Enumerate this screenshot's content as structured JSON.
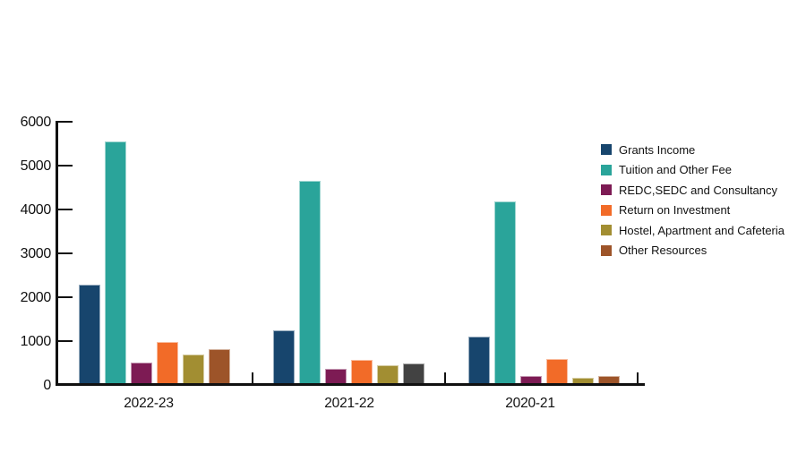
{
  "chart": {
    "background": "#ffffff",
    "axis_color": "#111111",
    "bar_outline": "rgba(255,255,255,0.55)"
  },
  "chart_data": {
    "type": "bar",
    "title": "",
    "xlabel": "",
    "ylabel": "",
    "categories": [
      "2022-23",
      "2021-22",
      "2020-21"
    ],
    "series": [
      {
        "name": "Grants Income",
        "color": "#17456d",
        "values": [
          2250,
          1210,
          1070
        ]
      },
      {
        "name": "Tuition and Other Fee",
        "color": "#2aa49a",
        "values": [
          5500,
          4620,
          4150
        ]
      },
      {
        "name": "REDC,SEDC and Consultancy",
        "color": "#7d1b54",
        "values": [
          470,
          330,
          170
        ]
      },
      {
        "name": "Return on Investment",
        "color": "#f26b28",
        "values": [
          940,
          530,
          550
        ]
      },
      {
        "name": "Hostel, Apartment and Cafeteria",
        "color": "#a28e32",
        "values": [
          650,
          410,
          130
        ]
      },
      {
        "name": "Other Resources",
        "color": "#9d5429",
        "values": [
          780,
          450,
          170
        ],
        "bar_colors": [
          "#9d5429",
          "#424242",
          "#9d5429"
        ]
      }
    ],
    "ylim": [
      0,
      6000
    ],
    "yticks": [
      0,
      1000,
      2000,
      3000,
      4000,
      5000,
      6000
    ],
    "grid": false,
    "legend_position": "right"
  }
}
